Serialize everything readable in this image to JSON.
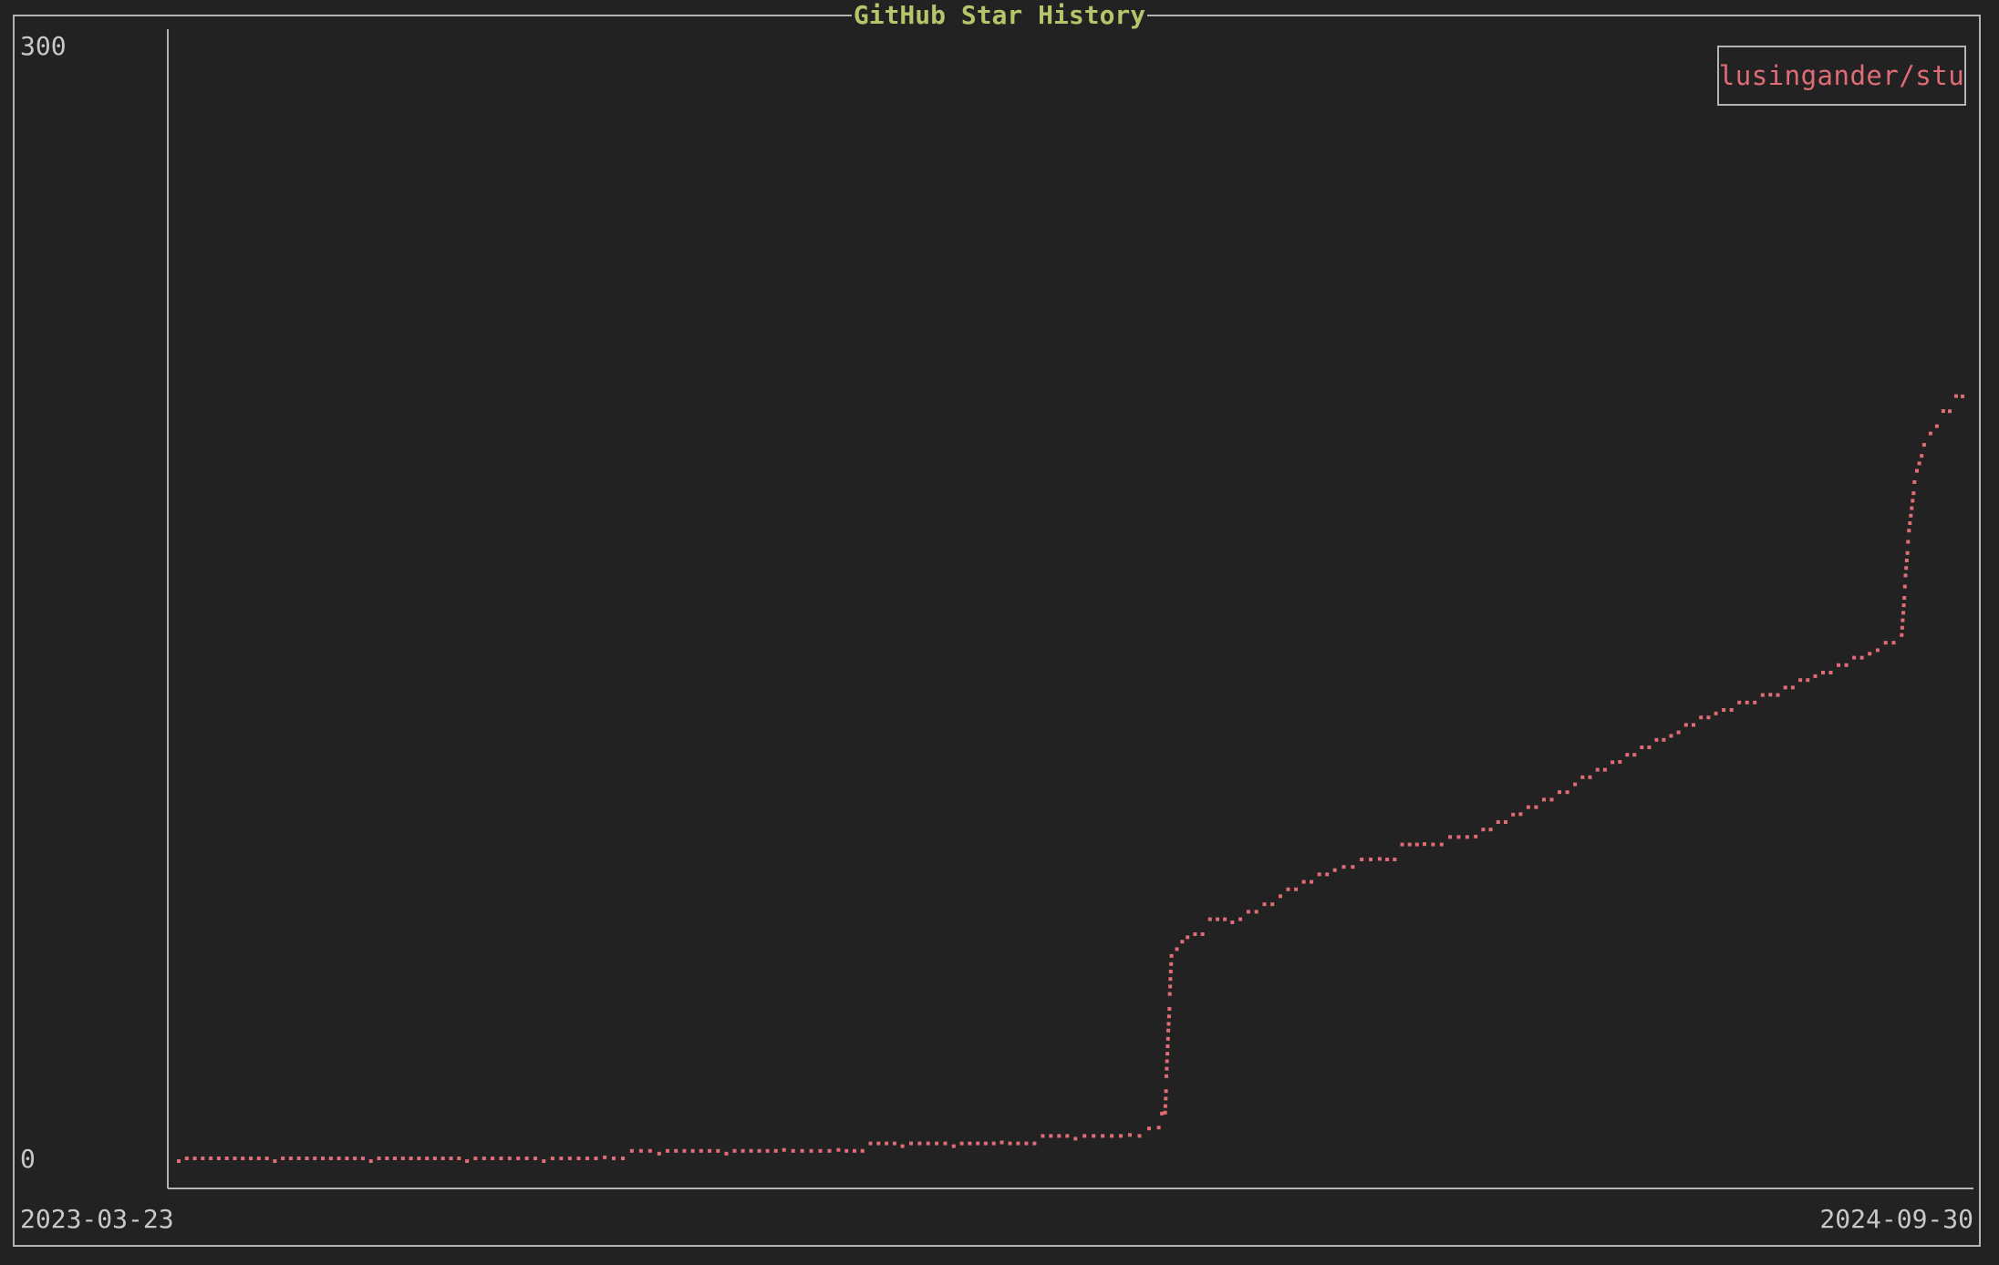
{
  "chart_data": {
    "type": "scatter",
    "title": "GitHub Star History",
    "xlabel": "",
    "ylabel": "",
    "x_tick_labels": [
      "2023-03-23",
      "2024-09-30"
    ],
    "y_tick_labels": [
      "0",
      "300"
    ],
    "xlim": [
      "2023-03-23",
      "2024-09-30"
    ],
    "ylim": [
      0,
      300
    ],
    "grid": false,
    "legend_position": "top-right",
    "series": [
      {
        "name": "lusingander/stu",
        "color": "#e06c75",
        "points": [
          [
            "2023-03-23",
            0
          ],
          [
            "2023-04-22",
            0
          ],
          [
            "2023-05-22",
            0
          ],
          [
            "2023-06-21",
            0
          ],
          [
            "2023-07-15",
            0
          ],
          [
            "2023-08-03",
            1
          ],
          [
            "2023-08-20",
            2
          ],
          [
            "2023-09-10",
            2
          ],
          [
            "2023-09-28",
            3
          ],
          [
            "2023-10-15",
            3
          ],
          [
            "2023-11-04",
            4
          ],
          [
            "2023-11-20",
            4
          ],
          [
            "2023-12-05",
            5
          ],
          [
            "2023-12-28",
            6
          ],
          [
            "2024-01-14",
            7
          ],
          [
            "2024-01-23",
            9
          ],
          [
            "2024-01-25",
            13
          ],
          [
            "2024-01-26",
            35
          ],
          [
            "2024-01-27",
            55
          ],
          [
            "2024-02-01",
            60
          ],
          [
            "2024-02-15",
            64
          ],
          [
            "2024-03-01",
            71
          ],
          [
            "2024-03-18",
            78
          ],
          [
            "2024-04-01",
            81
          ],
          [
            "2024-04-15",
            85
          ],
          [
            "2024-05-01",
            87
          ],
          [
            "2024-05-15",
            93
          ],
          [
            "2024-06-01",
            101
          ],
          [
            "2024-06-15",
            107
          ],
          [
            "2024-07-01",
            114
          ],
          [
            "2024-07-15",
            120
          ],
          [
            "2024-08-01",
            125
          ],
          [
            "2024-08-15",
            130
          ],
          [
            "2024-09-01",
            136
          ],
          [
            "2024-09-11",
            141
          ],
          [
            "2024-09-12",
            154
          ],
          [
            "2024-09-13",
            166
          ],
          [
            "2024-09-15",
            182
          ],
          [
            "2024-09-18",
            192
          ],
          [
            "2024-09-22",
            197
          ],
          [
            "2024-09-26",
            201
          ],
          [
            "2024-09-30",
            205
          ]
        ]
      }
    ]
  }
}
